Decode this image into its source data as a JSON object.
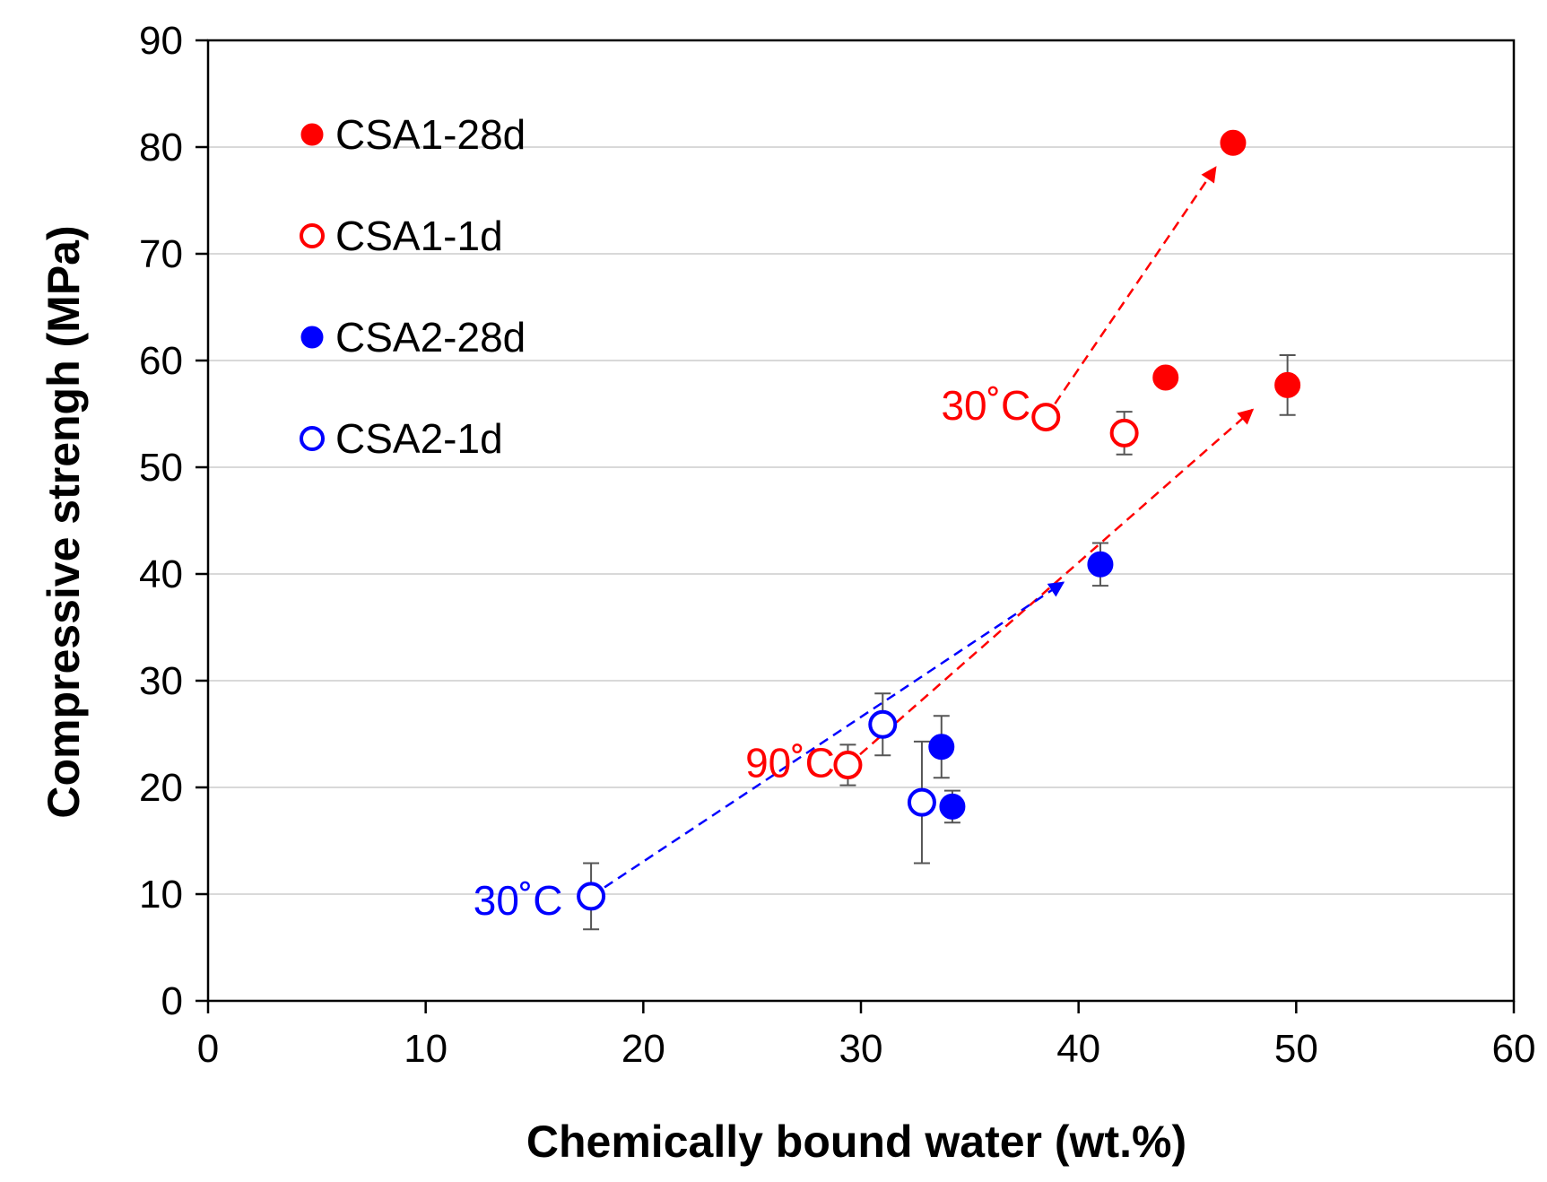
{
  "chart_data": {
    "type": "scatter",
    "xlabel": "Chemically bound water (wt.%)",
    "ylabel": "Compressive strengh (MPa)",
    "xlim": [
      0,
      60
    ],
    "ylim": [
      0,
      90
    ],
    "xticks": [
      0,
      10,
      20,
      30,
      40,
      50,
      60
    ],
    "yticks": [
      0,
      10,
      20,
      30,
      40,
      50,
      60,
      70,
      80,
      90
    ],
    "grid": "horizontal",
    "legend_position": "top-left",
    "colors": {
      "red": "#ff0000",
      "blue": "#0000ff",
      "errorbar": "#555555",
      "grid": "#d9d9d9"
    },
    "series": [
      {
        "name": "CSA1-28d",
        "color": "#ff0000",
        "marker": "filled-circle",
        "points": [
          {
            "x": 47.1,
            "y": 80.4,
            "err": null
          },
          {
            "x": 44.0,
            "y": 58.4,
            "err": null
          },
          {
            "x": 49.6,
            "y": 57.7,
            "err": 2.8
          }
        ]
      },
      {
        "name": "CSA1-1d",
        "color": "#ff0000",
        "marker": "open-circle",
        "points": [
          {
            "x": 38.5,
            "y": 54.7,
            "err": 0.8
          },
          {
            "x": 42.1,
            "y": 53.2,
            "err": 2.0
          },
          {
            "x": 29.4,
            "y": 22.1,
            "err": 1.9
          }
        ]
      },
      {
        "name": "CSA2-28d",
        "color": "#0000ff",
        "marker": "filled-circle",
        "points": [
          {
            "x": 41.0,
            "y": 40.9,
            "err": 2.0
          },
          {
            "x": 33.7,
            "y": 23.8,
            "err": 2.9
          },
          {
            "x": 34.2,
            "y": 18.2,
            "err": 1.5
          }
        ]
      },
      {
        "name": "CSA2-1d",
        "color": "#0000ff",
        "marker": "open-circle",
        "points": [
          {
            "x": 17.6,
            "y": 9.8,
            "err": 3.1
          },
          {
            "x": 31.0,
            "y": 25.9,
            "err": 2.9
          },
          {
            "x": 32.8,
            "y": 18.6,
            "err": 5.7
          }
        ]
      }
    ],
    "arrows": [
      {
        "color": "#ff0000",
        "from": [
          38.5,
          54.7
        ],
        "to": [
          46.3,
          78.1
        ]
      },
      {
        "color": "#ff0000",
        "from": [
          29.4,
          22.1
        ],
        "to": [
          48.0,
          55.4
        ]
      },
      {
        "color": "#0000ff",
        "from": [
          17.6,
          9.8
        ],
        "to": [
          39.3,
          39.2
        ]
      }
    ],
    "annotations": [
      {
        "text": "30˚C",
        "color": "#ff0000",
        "x": 34.5,
        "y": 55.8
      },
      {
        "text": "90˚C",
        "color": "#ff0000",
        "x": 25.5,
        "y": 22.3
      },
      {
        "text": "30˚C",
        "color": "#0000ff",
        "x": 13.0,
        "y": 9.4
      }
    ]
  }
}
